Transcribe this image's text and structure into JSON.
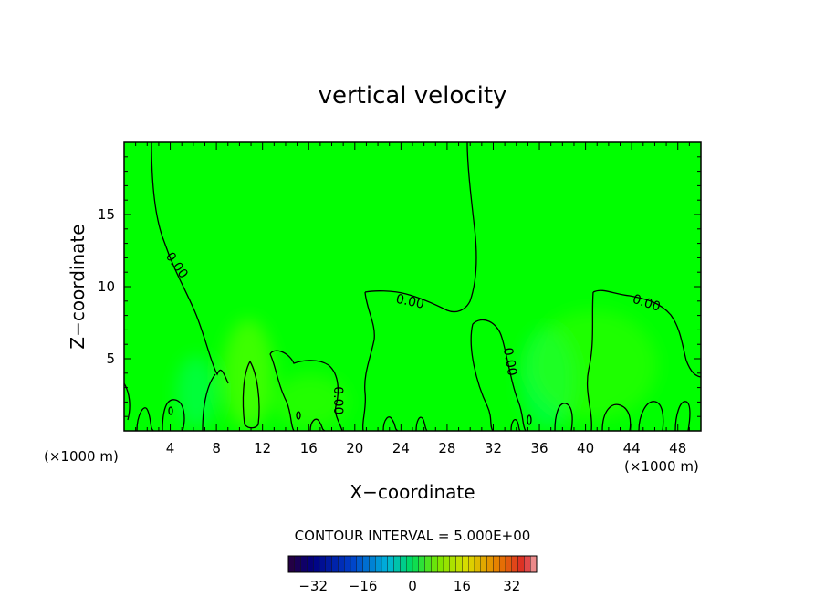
{
  "chart_data": {
    "type": "heatmap",
    "title": "vertical velocity",
    "xlabel": "X−coordinate",
    "ylabel": "Z−coordinate",
    "x_unit_left": "(×1000 m)",
    "x_unit_right": "(×1000 m)",
    "xlim": [
      0,
      50
    ],
    "ylim": [
      0,
      20
    ],
    "x_ticks": [
      4,
      8,
      12,
      16,
      20,
      24,
      28,
      32,
      36,
      40,
      44,
      48
    ],
    "y_ticks": [
      5,
      10,
      15
    ],
    "contour_interval_text": "CONTOUR INTERVAL = 5.000E+00",
    "contour_labels": [
      {
        "text": "0.00",
        "x": 4.6,
        "z": 11.5
      },
      {
        "text": "0.00",
        "x": 24.8,
        "z": 9.0
      },
      {
        "text": "0.00",
        "x": 18.6,
        "z": 2.1
      },
      {
        "text": "0.00",
        "x": 33.5,
        "z": 4.8
      },
      {
        "text": "0.00",
        "x": 45.3,
        "z": 8.9
      }
    ],
    "colorbar": {
      "min": -40,
      "max": 40,
      "ticks": [
        -32,
        -16,
        0,
        16,
        32
      ],
      "tick_labels": [
        "−32",
        "−16",
        "0",
        "16",
        "32"
      ]
    },
    "field_colors": {
      "background": "#00ff00",
      "weak_positive": "#55ff00",
      "weak_negative": "#00ff66"
    }
  }
}
